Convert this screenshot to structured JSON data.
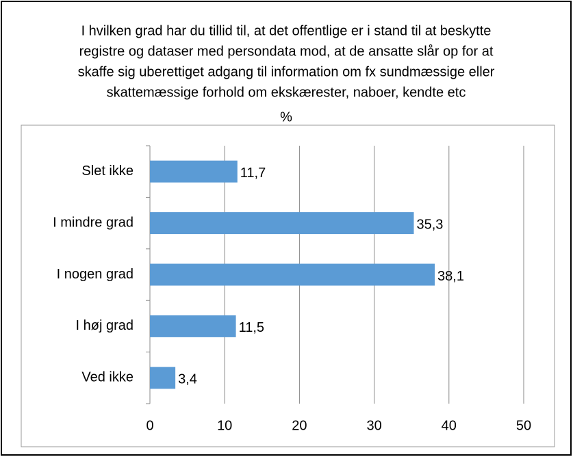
{
  "chart_data": {
    "type": "bar",
    "orientation": "horizontal",
    "title": [
      "I hvilken grad har du tillid til, at det offentlige er i stand til at beskytte",
      "registre og dataser med persondata mod, at de ansatte slår op for at",
      "skaffe sig uberettiget adgang til information om fx sundmæssige eller",
      "skattemæssige forhold om ekskærester, naboer, kendte etc"
    ],
    "subtitle": "%",
    "categories": [
      "Slet ikke",
      "I mindre grad",
      "I nogen grad",
      "I høj grad",
      "Ved ikke"
    ],
    "values": [
      11.7,
      35.3,
      38.1,
      11.5,
      3.4
    ],
    "value_labels": [
      "11,7",
      "35,3",
      "38,1",
      "11,5",
      "3,4"
    ],
    "color": "#5b9bd5",
    "xlim": [
      0,
      50
    ],
    "xticks": [
      0,
      10,
      20,
      30,
      40,
      50
    ],
    "grid": true
  }
}
